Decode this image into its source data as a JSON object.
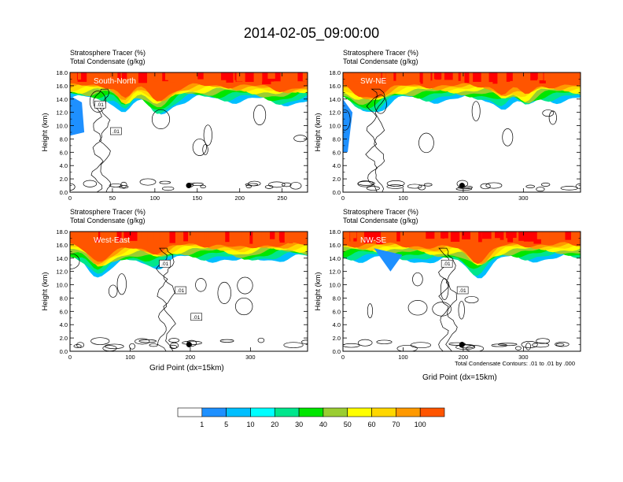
{
  "title": "2014-02-05_09:00:00",
  "colors": {
    "scale": [
      "#ffffff",
      "#1e90ff",
      "#00bfff",
      "#00ffff",
      "#00e68c",
      "#00e600",
      "#9acd32",
      "#ffff00",
      "#ffd700",
      "#ff9900",
      "#ff5500",
      "#ff0000"
    ]
  },
  "chart_data": [
    {
      "type": "heatmap",
      "name": "South-North",
      "label_line1": "Stratosphere Tracer   (%)",
      "label_line2": "Total Condensate   (g/kg)",
      "ylabel": "Height (km)",
      "xlabel": "",
      "x_ticks": [
        0,
        50,
        100,
        150,
        200,
        250
      ],
      "xlim": [
        0,
        280
      ],
      "y_ticks": [
        "0.0",
        "2.0",
        "4.0",
        "6.0",
        "8.0",
        "10.0",
        "12.0",
        "14.0",
        "16.0",
        "18.0"
      ],
      "ylim": [
        0,
        18
      ],
      "contour_labels": [
        ".01",
        ".01"
      ],
      "marker_x": 140,
      "marker_y": 1.0
    },
    {
      "type": "heatmap",
      "name": "SW-NE",
      "label_line1": "Stratosphere Tracer   (%)",
      "label_line2": "Total Condensate   (g/kg)",
      "ylabel": "Height (km)",
      "xlabel": "",
      "x_ticks": [
        0,
        100,
        200,
        300
      ],
      "xlim": [
        0,
        395
      ],
      "y_ticks": [
        "0.0",
        "2.0",
        "4.0",
        "6.0",
        "8.0",
        "10.0",
        "12.0",
        "14.0",
        "16.0",
        "18.0"
      ],
      "ylim": [
        0,
        18
      ],
      "contour_labels": [],
      "marker_x": 198,
      "marker_y": 1.0
    },
    {
      "type": "heatmap",
      "name": "West-East",
      "label_line1": "Stratosphere Tracer   (%)",
      "label_line2": "Total Condensate   (g/kg)",
      "ylabel": "Height (km)",
      "xlabel": "Grid Point (dx=15km)",
      "x_ticks": [
        0,
        100,
        200,
        300
      ],
      "xlim": [
        0,
        395
      ],
      "y_ticks": [
        "0.0",
        "2.0",
        "4.0",
        "6.0",
        "8.0",
        "10.0",
        "12.0",
        "14.0",
        "16.0",
        "18.0"
      ],
      "ylim": [
        0,
        18
      ],
      "contour_labels": [
        ".01",
        ".01",
        ".01"
      ],
      "marker_x": 198,
      "marker_y": 1.0
    },
    {
      "type": "heatmap",
      "name": "NW-SE",
      "label_line1": "Stratosphere Tracer   (%)",
      "label_line2": "Total Condensate   (g/kg)",
      "ylabel": "Height (km)",
      "xlabel": "Grid Point (dx=15km)",
      "x_ticks": [
        0,
        100,
        200,
        300
      ],
      "xlim": [
        0,
        395
      ],
      "y_ticks": [
        "0.0",
        "2.0",
        "4.0",
        "6.0",
        "8.0",
        "10.0",
        "12.0",
        "14.0",
        "16.0",
        "18.0"
      ],
      "ylim": [
        0,
        18
      ],
      "contour_labels": [
        ".01",
        ".01"
      ],
      "marker_x": 198,
      "marker_y": 1.0
    }
  ],
  "contour_note": "Total Condensate Contours: .01 to .01 by .000",
  "colorbar": {
    "labels": [
      "1",
      "5",
      "10",
      "20",
      "30",
      "40",
      "50",
      "60",
      "70",
      "100"
    ]
  }
}
